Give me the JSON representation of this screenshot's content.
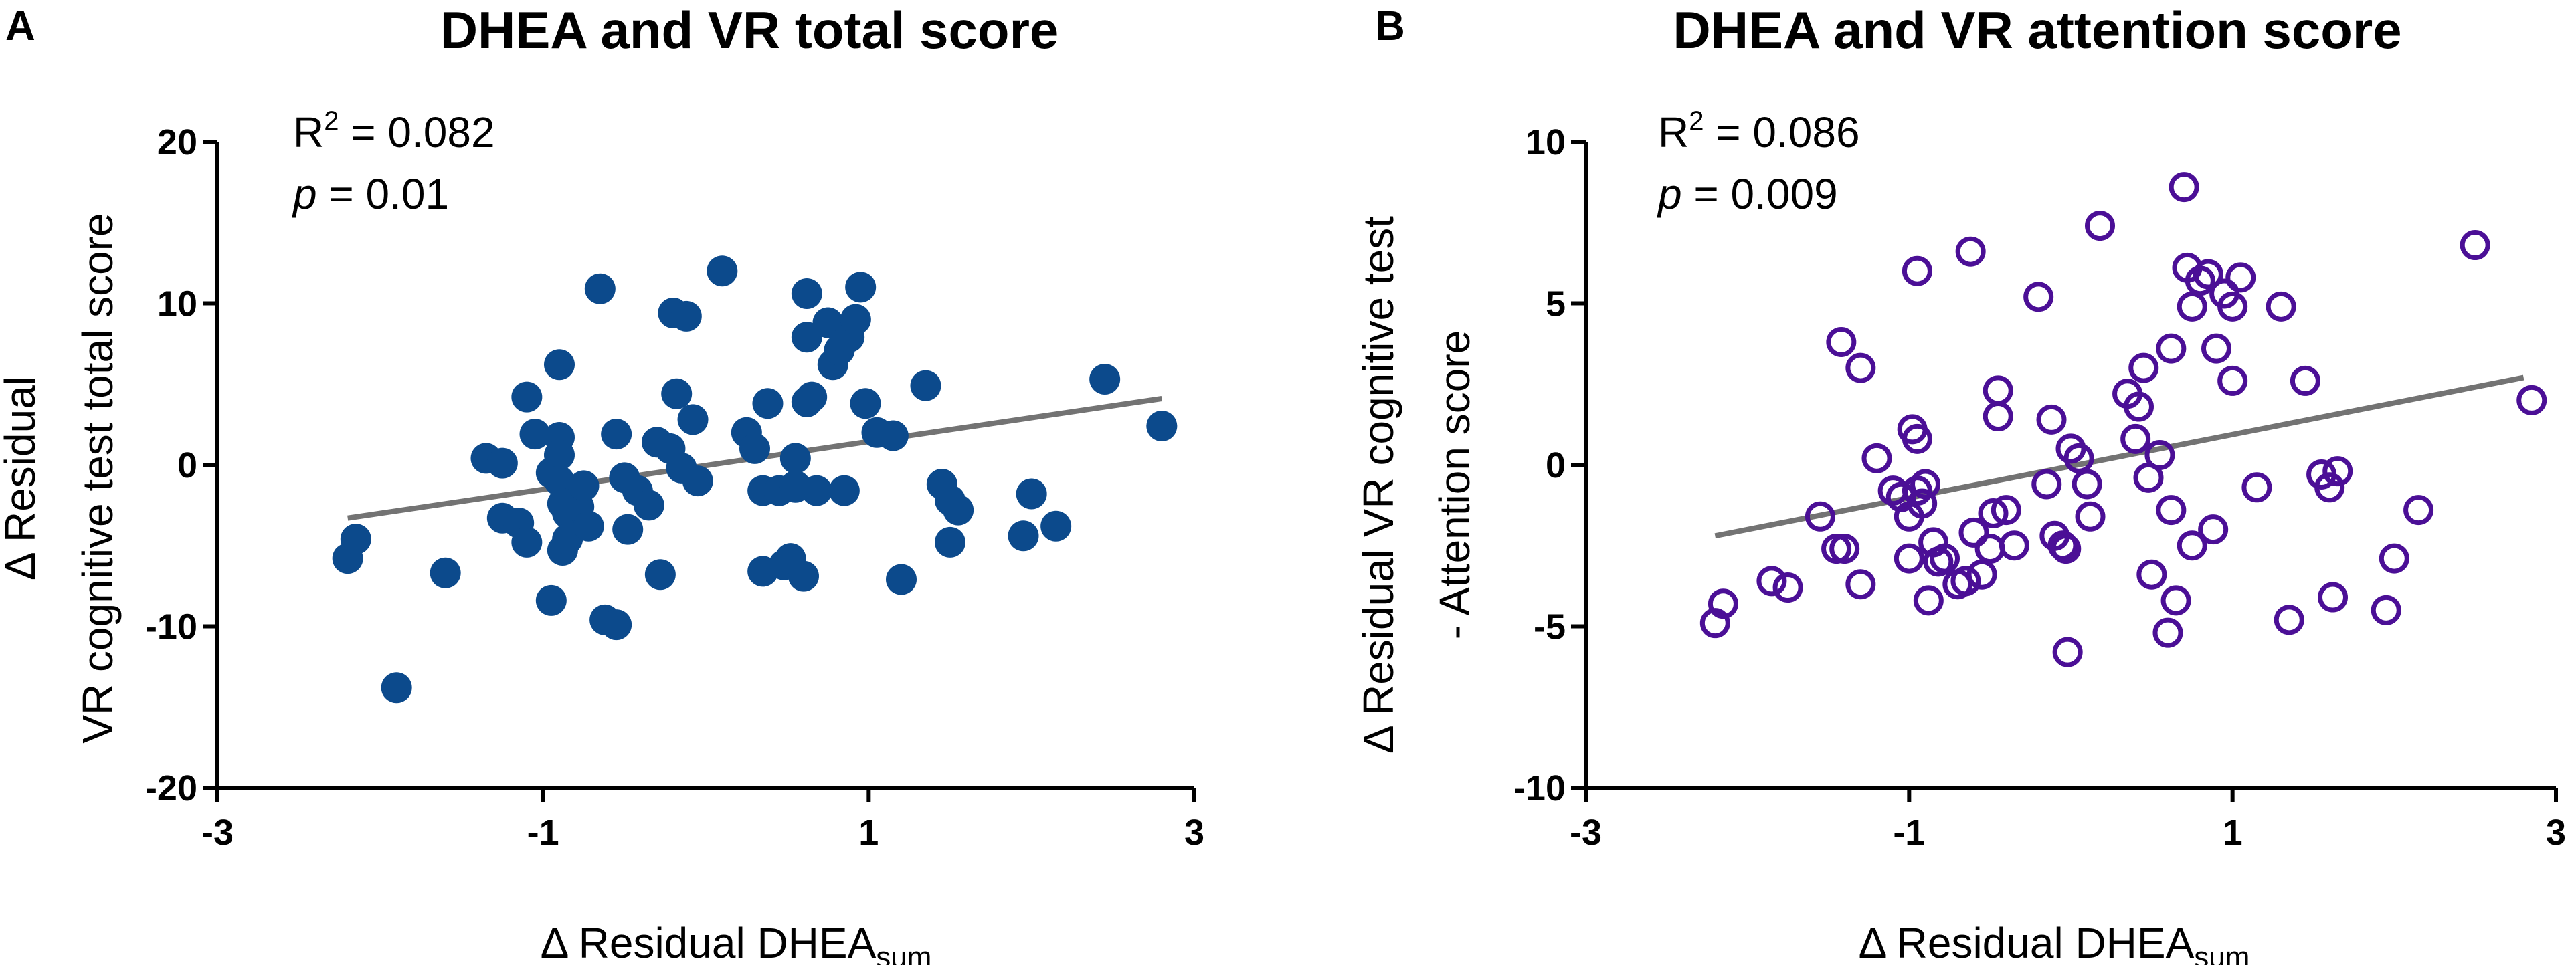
{
  "chart_data": [
    {
      "type": "scatter",
      "panel": "A",
      "title": "DHEA and VR total score",
      "xlabel": "Δ Residual DHEA",
      "xlabel_sub": "sum",
      "ylabel_line1": "Δ Residual",
      "ylabel_line2": "VR cognitive test  total score",
      "r2_prefix": "R",
      "r2_sup": "2",
      "r2_value": " = 0.082",
      "p_symbol": "p",
      "p_value": " = 0.01",
      "xlim": [
        -3,
        3
      ],
      "ylim": [
        -20,
        20
      ],
      "xticks": [
        -3,
        -1,
        1,
        3
      ],
      "xtick_labels": [
        "-3",
        "-1",
        "1",
        "3"
      ],
      "yticks": [
        20,
        10,
        0,
        -10,
        -20
      ],
      "ytick_labels": [
        "20",
        "10",
        "0",
        "-10",
        "-20"
      ],
      "marker": "filled",
      "color": "#0c4a8c",
      "line_color": "#737373",
      "fit_line": [
        [
          -2.2,
          -3.3
        ],
        [
          2.8,
          4.1
        ]
      ],
      "points": [
        [
          -2.2,
          -5.8
        ],
        [
          -2.15,
          -4.6
        ],
        [
          -1.9,
          -13.8
        ],
        [
          -1.6,
          -6.7
        ],
        [
          -1.35,
          0.4
        ],
        [
          -1.25,
          0.1
        ],
        [
          -1.25,
          -3.3
        ],
        [
          -1.15,
          -3.6
        ],
        [
          -1.1,
          4.2
        ],
        [
          -1.1,
          -4.8
        ],
        [
          -1.05,
          1.9
        ],
        [
          -0.95,
          -0.5
        ],
        [
          -0.95,
          -8.4
        ],
        [
          -0.9,
          6.2
        ],
        [
          -0.9,
          1.7
        ],
        [
          -0.9,
          0.6
        ],
        [
          -0.9,
          -1.0
        ],
        [
          -0.88,
          -2.4
        ],
        [
          -0.85,
          -3.0
        ],
        [
          -0.88,
          -5.3
        ],
        [
          -0.85,
          -4.6
        ],
        [
          -0.8,
          -3.3
        ],
        [
          -0.78,
          -2.6
        ],
        [
          -0.75,
          -1.3
        ],
        [
          -0.72,
          -3.8
        ],
        [
          -0.65,
          10.9
        ],
        [
          -0.62,
          -9.6
        ],
        [
          -0.55,
          1.9
        ],
        [
          -0.55,
          -9.9
        ],
        [
          -0.5,
          -0.8
        ],
        [
          -0.48,
          -4.0
        ],
        [
          -0.42,
          -1.6
        ],
        [
          -0.35,
          -2.5
        ],
        [
          -0.3,
          1.4
        ],
        [
          -0.28,
          -6.8
        ],
        [
          -0.22,
          1.0
        ],
        [
          -0.2,
          9.4
        ],
        [
          -0.18,
          4.4
        ],
        [
          -0.15,
          -0.2
        ],
        [
          -0.12,
          9.2
        ],
        [
          -0.08,
          2.8
        ],
        [
          -0.05,
          -1.0
        ],
        [
          0.1,
          12.0
        ],
        [
          0.25,
          2.0
        ],
        [
          0.3,
          1.0
        ],
        [
          0.35,
          -6.6
        ],
        [
          0.35,
          -1.6
        ],
        [
          0.38,
          3.8
        ],
        [
          0.45,
          -1.6
        ],
        [
          0.48,
          -6.2
        ],
        [
          0.52,
          -5.8
        ],
        [
          0.55,
          0.4
        ],
        [
          0.55,
          -1.4
        ],
        [
          0.55,
          -1.3
        ],
        [
          0.6,
          -6.9
        ],
        [
          0.62,
          10.6
        ],
        [
          0.62,
          7.9
        ],
        [
          0.62,
          3.9
        ],
        [
          0.65,
          4.2
        ],
        [
          0.68,
          -1.6
        ],
        [
          0.75,
          8.8
        ],
        [
          0.78,
          6.2
        ],
        [
          0.82,
          7.1
        ],
        [
          0.85,
          -1.6
        ],
        [
          0.88,
          7.9
        ],
        [
          0.92,
          9.0
        ],
        [
          0.95,
          11.0
        ],
        [
          0.98,
          3.8
        ],
        [
          1.05,
          2.0
        ],
        [
          1.15,
          1.8
        ],
        [
          1.2,
          -7.1
        ],
        [
          1.35,
          4.9
        ],
        [
          1.45,
          -1.2
        ],
        [
          1.5,
          -4.8
        ],
        [
          1.5,
          -2.2
        ],
        [
          1.55,
          -2.8
        ],
        [
          1.95,
          -4.4
        ],
        [
          2.0,
          -1.8
        ],
        [
          2.15,
          -3.8
        ],
        [
          2.45,
          5.3
        ],
        [
          2.8,
          2.4
        ]
      ]
    },
    {
      "type": "scatter",
      "panel": "B",
      "title": "DHEA and VR attention score",
      "xlabel": "Δ Residual DHEA",
      "xlabel_sub": "sum",
      "ylabel_line1": "Δ Residual VR cognitive test",
      "ylabel_line2": "- Attention score",
      "r2_prefix": "R",
      "r2_sup": "2",
      "r2_value": " = 0.086",
      "p_symbol": "p",
      "p_value": " = 0.009",
      "xlim": [
        -3,
        3
      ],
      "ylim": [
        -10,
        10
      ],
      "xticks": [
        -3,
        -1,
        1,
        3
      ],
      "xtick_labels": [
        "-3",
        "-1",
        "1",
        "3"
      ],
      "yticks": [
        10,
        5,
        0,
        -5,
        -10
      ],
      "ytick_labels": [
        "10",
        "5",
        "0",
        "-5",
        "-10"
      ],
      "marker": "open",
      "color": "#4b0f96",
      "line_color": "#737373",
      "fit_line": [
        [
          -2.2,
          -2.2
        ],
        [
          2.8,
          2.7
        ]
      ],
      "points": [
        [
          -2.2,
          -4.9
        ],
        [
          -2.15,
          -4.3
        ],
        [
          -1.85,
          -3.6
        ],
        [
          -1.75,
          -3.8
        ],
        [
          -1.55,
          -1.6
        ],
        [
          -1.45,
          -2.6
        ],
        [
          -1.42,
          3.8
        ],
        [
          -1.4,
          -2.6
        ],
        [
          -1.3,
          3.0
        ],
        [
          -1.3,
          -3.7
        ],
        [
          -1.2,
          0.2
        ],
        [
          -1.1,
          -0.8
        ],
        [
          -1.05,
          -1.0
        ],
        [
          -1.0,
          -2.9
        ],
        [
          -1.0,
          -1.6
        ],
        [
          -0.98,
          1.1
        ],
        [
          -0.95,
          6.0
        ],
        [
          -0.95,
          0.8
        ],
        [
          -0.95,
          -0.8
        ],
        [
          -0.92,
          -1.2
        ],
        [
          -0.9,
          -0.6
        ],
        [
          -0.88,
          -4.2
        ],
        [
          -0.85,
          -2.4
        ],
        [
          -0.82,
          -3.0
        ],
        [
          -0.78,
          -2.9
        ],
        [
          -0.7,
          -3.7
        ],
        [
          -0.65,
          -3.6
        ],
        [
          -0.62,
          6.6
        ],
        [
          -0.6,
          -2.1
        ],
        [
          -0.55,
          -3.4
        ],
        [
          -0.5,
          -2.6
        ],
        [
          -0.48,
          -1.5
        ],
        [
          -0.45,
          1.5
        ],
        [
          -0.45,
          2.3
        ],
        [
          -0.4,
          -1.4
        ],
        [
          -0.35,
          -2.5
        ],
        [
          -0.2,
          5.2
        ],
        [
          -0.15,
          -0.6
        ],
        [
          -0.12,
          1.4
        ],
        [
          -0.1,
          -2.2
        ],
        [
          -0.05,
          -2.5
        ],
        [
          -0.03,
          -2.6
        ],
        [
          0.0,
          0.5
        ],
        [
          -0.02,
          -5.8
        ],
        [
          0.05,
          0.2
        ],
        [
          0.1,
          -0.6
        ],
        [
          0.12,
          -1.6
        ],
        [
          0.18,
          7.4
        ],
        [
          0.35,
          2.2
        ],
        [
          0.4,
          0.8
        ],
        [
          0.42,
          1.8
        ],
        [
          0.45,
          3.0
        ],
        [
          0.48,
          -0.4
        ],
        [
          0.5,
          -3.4
        ],
        [
          0.55,
          0.3
        ],
        [
          0.6,
          -5.2
        ],
        [
          0.62,
          3.6
        ],
        [
          0.62,
          -1.4
        ],
        [
          0.65,
          -4.2
        ],
        [
          0.7,
          8.6
        ],
        [
          0.72,
          6.1
        ],
        [
          0.75,
          4.9
        ],
        [
          0.75,
          -2.5
        ],
        [
          0.8,
          5.7
        ],
        [
          0.85,
          5.9
        ],
        [
          0.88,
          -2.0
        ],
        [
          0.9,
          3.6
        ],
        [
          0.95,
          5.3
        ],
        [
          1.0,
          4.9
        ],
        [
          1.0,
          2.6
        ],
        [
          1.05,
          5.8
        ],
        [
          1.15,
          -0.7
        ],
        [
          1.3,
          4.9
        ],
        [
          1.35,
          -4.8
        ],
        [
          1.45,
          2.6
        ],
        [
          1.55,
          -0.3
        ],
        [
          1.6,
          -0.7
        ],
        [
          1.62,
          -4.1
        ],
        [
          1.65,
          -0.2
        ],
        [
          1.95,
          -4.5
        ],
        [
          2.0,
          -2.9
        ],
        [
          2.15,
          -1.4
        ],
        [
          2.5,
          6.8
        ],
        [
          2.85,
          2.0
        ]
      ]
    }
  ]
}
